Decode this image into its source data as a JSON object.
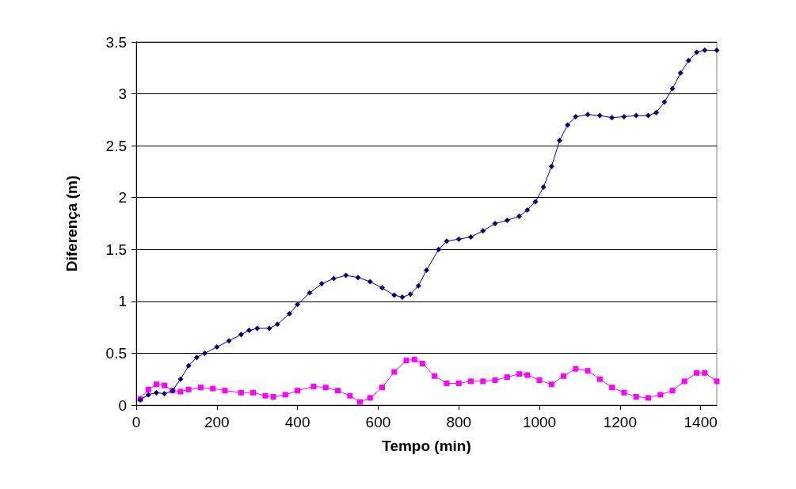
{
  "chart_data": {
    "type": "line",
    "xlabel": "Tempo (min)",
    "ylabel": "Diferença (m)",
    "xlim": [
      0,
      1440
    ],
    "xticks": [
      0,
      200,
      400,
      600,
      800,
      1000,
      1200,
      1400
    ],
    "ylim": [
      0,
      3.5
    ],
    "yticks": [
      0,
      0.5,
      1,
      1.5,
      2,
      2.5,
      3,
      3.5
    ],
    "grid": "y",
    "series": [
      {
        "color": "#000080",
        "marker": "diamond",
        "x": [
          10,
          30,
          50,
          70,
          90,
          110,
          130,
          150,
          170,
          200,
          230,
          260,
          280,
          300,
          330,
          350,
          380,
          400,
          430,
          460,
          490,
          520,
          550,
          580,
          610,
          640,
          660,
          680,
          700,
          720,
          750,
          770,
          800,
          830,
          860,
          890,
          920,
          950,
          970,
          990,
          1010,
          1030,
          1050,
          1070,
          1090,
          1120,
          1150,
          1180,
          1210,
          1240,
          1270,
          1290,
          1310,
          1330,
          1350,
          1370,
          1390,
          1410,
          1440
        ],
        "values": [
          0.05,
          0.1,
          0.12,
          0.11,
          0.14,
          0.25,
          0.38,
          0.46,
          0.5,
          0.56,
          0.62,
          0.68,
          0.72,
          0.74,
          0.74,
          0.78,
          0.88,
          0.97,
          1.08,
          1.17,
          1.22,
          1.25,
          1.23,
          1.19,
          1.13,
          1.06,
          1.04,
          1.07,
          1.15,
          1.3,
          1.5,
          1.58,
          1.6,
          1.62,
          1.68,
          1.75,
          1.78,
          1.82,
          1.88,
          1.96,
          2.1,
          2.3,
          2.55,
          2.7,
          2.78,
          2.8,
          2.79,
          2.77,
          2.78,
          2.79,
          2.79,
          2.82,
          2.92,
          3.05,
          3.2,
          3.32,
          3.4,
          3.42,
          3.42
        ]
      },
      {
        "color": "#ff00ff",
        "marker": "square",
        "x": [
          10,
          30,
          50,
          70,
          90,
          110,
          130,
          160,
          190,
          220,
          260,
          290,
          320,
          340,
          370,
          400,
          440,
          470,
          500,
          530,
          555,
          580,
          610,
          640,
          670,
          690,
          710,
          740,
          770,
          800,
          830,
          860,
          890,
          920,
          950,
          970,
          1000,
          1030,
          1060,
          1090,
          1120,
          1150,
          1180,
          1210,
          1240,
          1270,
          1300,
          1330,
          1360,
          1390,
          1410,
          1440
        ],
        "values": [
          0.06,
          0.15,
          0.2,
          0.19,
          0.14,
          0.13,
          0.15,
          0.17,
          0.16,
          0.14,
          0.12,
          0.12,
          0.09,
          0.08,
          0.1,
          0.14,
          0.18,
          0.17,
          0.14,
          0.09,
          0.03,
          0.07,
          0.17,
          0.32,
          0.43,
          0.44,
          0.4,
          0.28,
          0.21,
          0.21,
          0.23,
          0.23,
          0.24,
          0.27,
          0.3,
          0.29,
          0.24,
          0.2,
          0.28,
          0.35,
          0.33,
          0.25,
          0.17,
          0.12,
          0.08,
          0.07,
          0.1,
          0.14,
          0.23,
          0.31,
          0.31,
          0.23
        ]
      }
    ]
  }
}
